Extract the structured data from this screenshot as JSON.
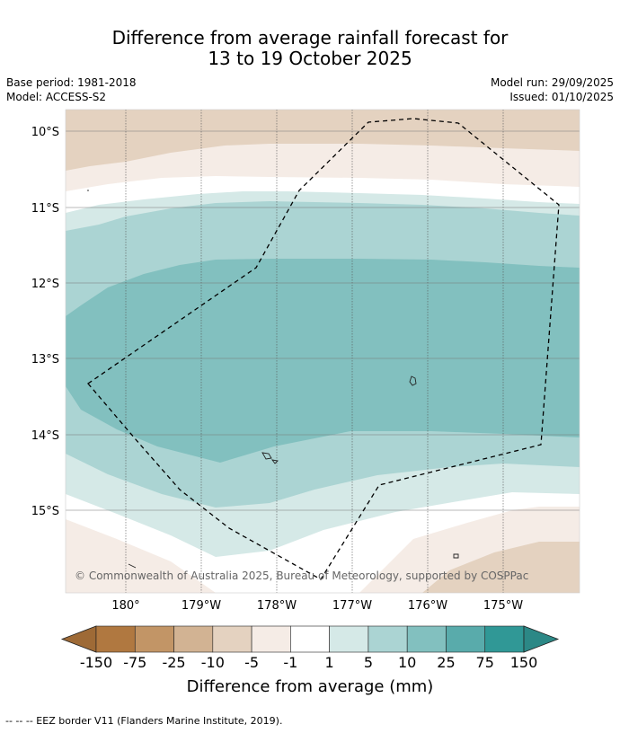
{
  "title": {
    "line1": "Difference from average rainfall forecast for",
    "line2": "13 to 19 October 2025"
  },
  "meta": {
    "base_period": "Base period: 1981-2018",
    "model": "Model: ACCESS-S2",
    "model_run": "Model run: 29/09/2025",
    "issued": "Issued: 01/10/2025"
  },
  "map": {
    "lat_labels": [
      "10°S",
      "11°S",
      "12°S",
      "13°S",
      "14°S",
      "15°S"
    ],
    "lon_labels": [
      "180°",
      "179°W",
      "178°W",
      "177°W",
      "176°W",
      "175°W"
    ],
    "copyright": "© Commonwealth of Australia 2025, Bureau of Meteorology, supported by COSPPac"
  },
  "colorbar": {
    "ticks": [
      "-150",
      "-75",
      "-25",
      "-10",
      "-5",
      "-1",
      "1",
      "5",
      "10",
      "25",
      "75",
      "150"
    ],
    "colors": [
      "#b07840",
      "#c29566",
      "#d2b393",
      "#e4d2c0",
      "#f5ece6",
      "#ffffff",
      "#d5e9e7",
      "#abd4d3",
      "#82c0bf",
      "#59abab",
      "#309896"
    ],
    "extend_low_color": "#9e6a36",
    "extend_high_color": "#2c8886",
    "label": "Difference from average (mm)"
  },
  "footer": "--  --  -- EEZ border V11 (Flanders Marine Institute, 2019)."
}
